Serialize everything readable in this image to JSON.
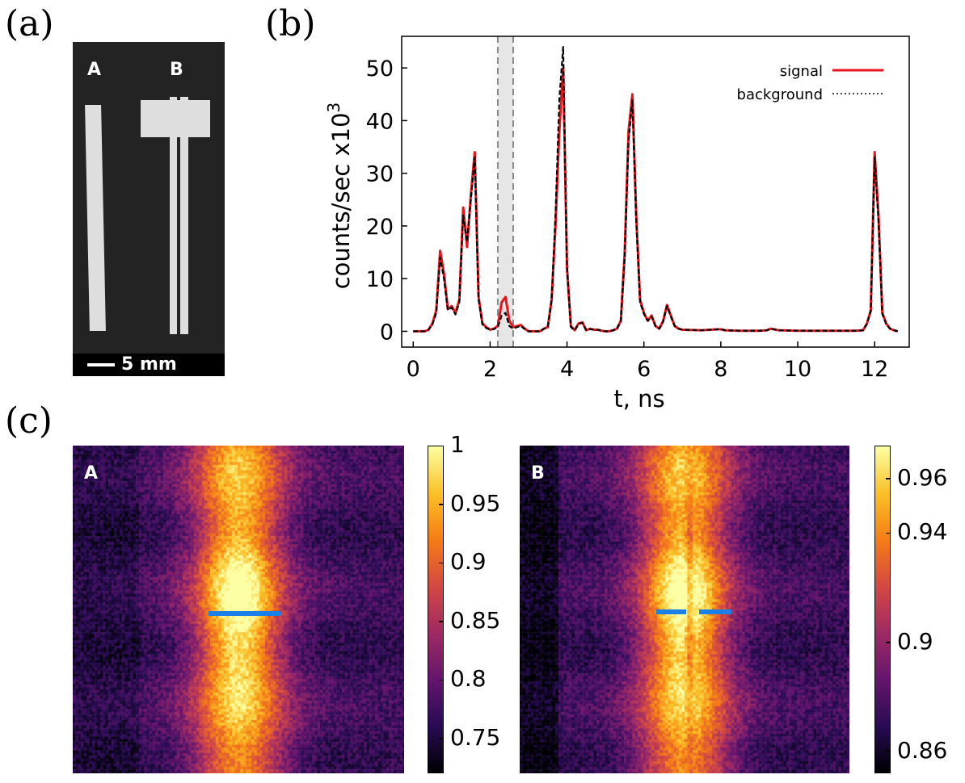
{
  "panels": {
    "a": {
      "label": "(a)",
      "strip_a": "A",
      "strip_b": "B",
      "scale": "5 mm"
    },
    "b": {
      "label": "(b)"
    },
    "c": {
      "label": "(c)",
      "map_a": "A",
      "map_b": "B"
    }
  },
  "chart_data": [
    {
      "type": "line",
      "title": "",
      "xlabel": "t, ns",
      "ylabel": "counts/sec x10",
      "ylabel_sup": "3",
      "xlim": [
        -0.3,
        12.9
      ],
      "ylim": [
        -3,
        56
      ],
      "xticks": [
        0,
        2,
        4,
        6,
        8,
        10,
        12
      ],
      "xtick_labels": [
        "0",
        "2",
        "4",
        "6",
        "8",
        "10",
        "12"
      ],
      "yticks": [
        0,
        10,
        20,
        30,
        40,
        50
      ],
      "ytick_labels": [
        "0",
        "10",
        "20",
        "30",
        "40",
        "50"
      ],
      "shaded_window": [
        2.2,
        2.6
      ],
      "legend": {
        "position": "top-right",
        "entries": [
          "signal",
          "background"
        ]
      },
      "colors": {
        "signal": "#e8141c",
        "background": "#000000"
      },
      "series": [
        {
          "name": "signal",
          "x": [
            0,
            0.1,
            0.2,
            0.3,
            0.4,
            0.5,
            0.6,
            0.7,
            0.8,
            0.9,
            1.0,
            1.1,
            1.2,
            1.3,
            1.4,
            1.5,
            1.6,
            1.7,
            1.8,
            1.9,
            2.0,
            2.1,
            2.2,
            2.3,
            2.4,
            2.5,
            2.6,
            2.7,
            2.8,
            2.9,
            3.0,
            3.1,
            3.2,
            3.3,
            3.4,
            3.5,
            3.6,
            3.7,
            3.8,
            3.9,
            4.0,
            4.1,
            4.2,
            4.3,
            4.4,
            4.5,
            4.6,
            4.7,
            4.8,
            4.9,
            5.0,
            5.1,
            5.2,
            5.3,
            5.4,
            5.5,
            5.6,
            5.7,
            5.8,
            5.9,
            6.0,
            6.1,
            6.2,
            6.3,
            6.4,
            6.5,
            6.6,
            6.7,
            6.8,
            6.9,
            7.0,
            7.5,
            8.0,
            8.1,
            8.5,
            9.0,
            9.2,
            9.3,
            9.5,
            10.0,
            10.5,
            11.0,
            11.5,
            11.7,
            11.8,
            11.9,
            12.0,
            12.1,
            12.2,
            12.3,
            12.4,
            12.5,
            12.6
          ],
          "y": [
            0,
            0,
            0,
            0,
            0.3,
            1.5,
            4,
            15.3,
            11,
            4.2,
            4.8,
            3.5,
            6,
            23.5,
            16,
            26,
            34,
            6.5,
            1.5,
            0.8,
            0.3,
            0.5,
            1,
            5.5,
            6.5,
            2,
            0.8,
            1,
            1.2,
            0.5,
            0,
            0,
            0,
            0,
            0.5,
            0.8,
            6,
            20,
            38,
            50,
            12,
            1,
            0.2,
            1.5,
            1.7,
            0.2,
            0.5,
            0.3,
            0.3,
            0.1,
            0,
            0,
            0.2,
            0.5,
            2,
            15,
            38,
            45,
            22,
            6,
            3.5,
            2,
            3,
            1,
            0.5,
            2,
            5,
            3,
            1,
            0.5,
            0.3,
            0.2,
            0.4,
            0.2,
            0.1,
            0.1,
            0.2,
            0.5,
            0.2,
            0.1,
            0.1,
            0.1,
            0.1,
            0.2,
            1.5,
            4,
            34,
            22,
            3.5,
            1.5,
            0.5,
            0.2,
            0
          ]
        },
        {
          "name": "background",
          "x": [
            0,
            0.1,
            0.2,
            0.3,
            0.4,
            0.5,
            0.6,
            0.7,
            0.8,
            0.9,
            1.0,
            1.1,
            1.2,
            1.3,
            1.4,
            1.5,
            1.6,
            1.7,
            1.8,
            1.9,
            2.0,
            2.1,
            2.2,
            2.3,
            2.4,
            2.5,
            2.6,
            2.7,
            2.8,
            2.9,
            3.0,
            3.1,
            3.2,
            3.3,
            3.4,
            3.5,
            3.6,
            3.7,
            3.8,
            3.9,
            4.0,
            4.1,
            4.2,
            4.3,
            4.4,
            4.5,
            4.6,
            4.7,
            4.8,
            4.9,
            5.0,
            5.1,
            5.2,
            5.3,
            5.4,
            5.5,
            5.6,
            5.7,
            5.8,
            5.9,
            6.0,
            6.1,
            6.2,
            6.3,
            6.4,
            6.5,
            6.6,
            6.7,
            6.8,
            6.9,
            7.0,
            7.5,
            8.0,
            8.1,
            8.5,
            9.0,
            9.2,
            9.3,
            9.5,
            10.0,
            10.5,
            11.0,
            11.5,
            11.7,
            11.8,
            11.9,
            12.0,
            12.1,
            12.2,
            12.3,
            12.4,
            12.5,
            12.6
          ],
          "y": [
            0,
            0,
            0,
            0,
            0.3,
            1.3,
            3.5,
            14,
            10,
            4,
            4.5,
            3.2,
            5.5,
            22,
            17,
            25,
            33,
            6,
            1.3,
            0.6,
            0.3,
            0.4,
            0.8,
            3,
            3.5,
            1,
            0.5,
            0.8,
            1,
            0.4,
            0,
            0,
            0,
            0,
            0.5,
            0.8,
            6,
            22,
            44,
            54,
            12,
            0.8,
            0.2,
            1.4,
            1.6,
            0.2,
            0.4,
            0.3,
            0.3,
            0.1,
            0,
            0,
            0.2,
            0.5,
            2,
            14,
            36,
            44,
            21,
            5.5,
            3.3,
            2,
            2.8,
            1,
            0.5,
            1.8,
            4.8,
            2.8,
            1,
            0.5,
            0.3,
            0.2,
            0.4,
            0.2,
            0.1,
            0.1,
            0.2,
            0.5,
            0.2,
            0.1,
            0.1,
            0.1,
            0.1,
            0.2,
            1.4,
            3.8,
            33,
            21,
            3.3,
            1.4,
            0.5,
            0.2,
            0
          ]
        }
      ]
    },
    {
      "type": "heatmap",
      "panel": "A",
      "colormap": "inferno",
      "colorbar_range": [
        0.72,
        1.0
      ],
      "colorbar_ticks": [
        0.75,
        0.8,
        0.85,
        0.9,
        0.95,
        1
      ],
      "colorbar_tick_labels": [
        "0.75",
        "0.8",
        "0.85",
        "0.9",
        "0.95",
        "1"
      ],
      "marker": "single blue line across center"
    },
    {
      "type": "heatmap",
      "panel": "B",
      "colormap": "inferno",
      "colorbar_range": [
        0.852,
        0.972
      ],
      "colorbar_ticks": [
        0.86,
        0.9,
        0.94,
        0.96
      ],
      "colorbar_tick_labels": [
        "0.86",
        "0.9",
        "0.94",
        "0.96"
      ],
      "marker": "two short blue lines split at center"
    }
  ]
}
